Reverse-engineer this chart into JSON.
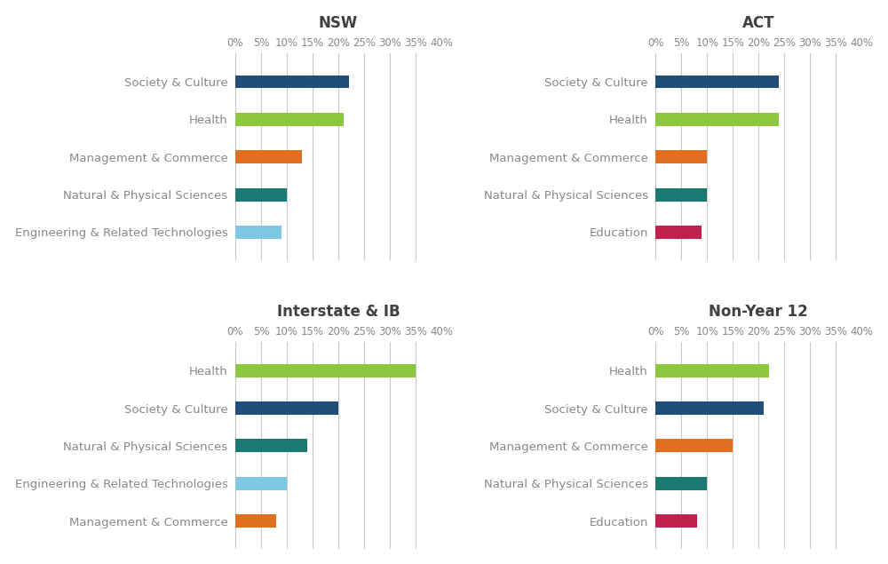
{
  "panels": [
    {
      "title": "NSW",
      "categories": [
        "Society & Culture",
        "Health",
        "Management & Commerce",
        "Natural & Physical Sciences",
        "Engineering & Related Technologies"
      ],
      "values": [
        22,
        21,
        13,
        10,
        9
      ],
      "colors": [
        "#1F4E79",
        "#8DC63F",
        "#E07020",
        "#1A7A72",
        "#7EC8E3"
      ]
    },
    {
      "title": "ACT",
      "categories": [
        "Society & Culture",
        "Health",
        "Management & Commerce",
        "Natural & Physical Sciences",
        "Education"
      ],
      "values": [
        24,
        24,
        10,
        10,
        9
      ],
      "colors": [
        "#1F4E79",
        "#8DC63F",
        "#E07020",
        "#1A7A72",
        "#C0214E"
      ]
    },
    {
      "title": "Interstate & IB",
      "categories": [
        "Health",
        "Society & Culture",
        "Natural & Physical Sciences",
        "Engineering & Related Technologies",
        "Management & Commerce"
      ],
      "values": [
        35,
        20,
        14,
        10,
        8
      ],
      "colors": [
        "#8DC63F",
        "#1F4E79",
        "#1A7A72",
        "#7EC8E3",
        "#E07020"
      ]
    },
    {
      "title": "Non-Year 12",
      "categories": [
        "Health",
        "Society & Culture",
        "Management & Commerce",
        "Natural & Physical Sciences",
        "Education"
      ],
      "values": [
        22,
        21,
        15,
        10,
        8
      ],
      "colors": [
        "#8DC63F",
        "#1F4E79",
        "#E07020",
        "#1A7A72",
        "#C0214E"
      ]
    }
  ],
  "xlim": [
    0,
    40
  ],
  "xticks": [
    0,
    5,
    10,
    15,
    20,
    25,
    30,
    35,
    40
  ],
  "xtick_labels": [
    "0%",
    "5%",
    "10%",
    "15%",
    "20%",
    "25%",
    "30%",
    "35%",
    "40%"
  ],
  "background_color": "#FFFFFF",
  "grid_color": "#C8C8C8",
  "title_fontsize": 12,
  "tick_fontsize": 8.5,
  "label_fontsize": 9.5,
  "bar_height": 0.35
}
